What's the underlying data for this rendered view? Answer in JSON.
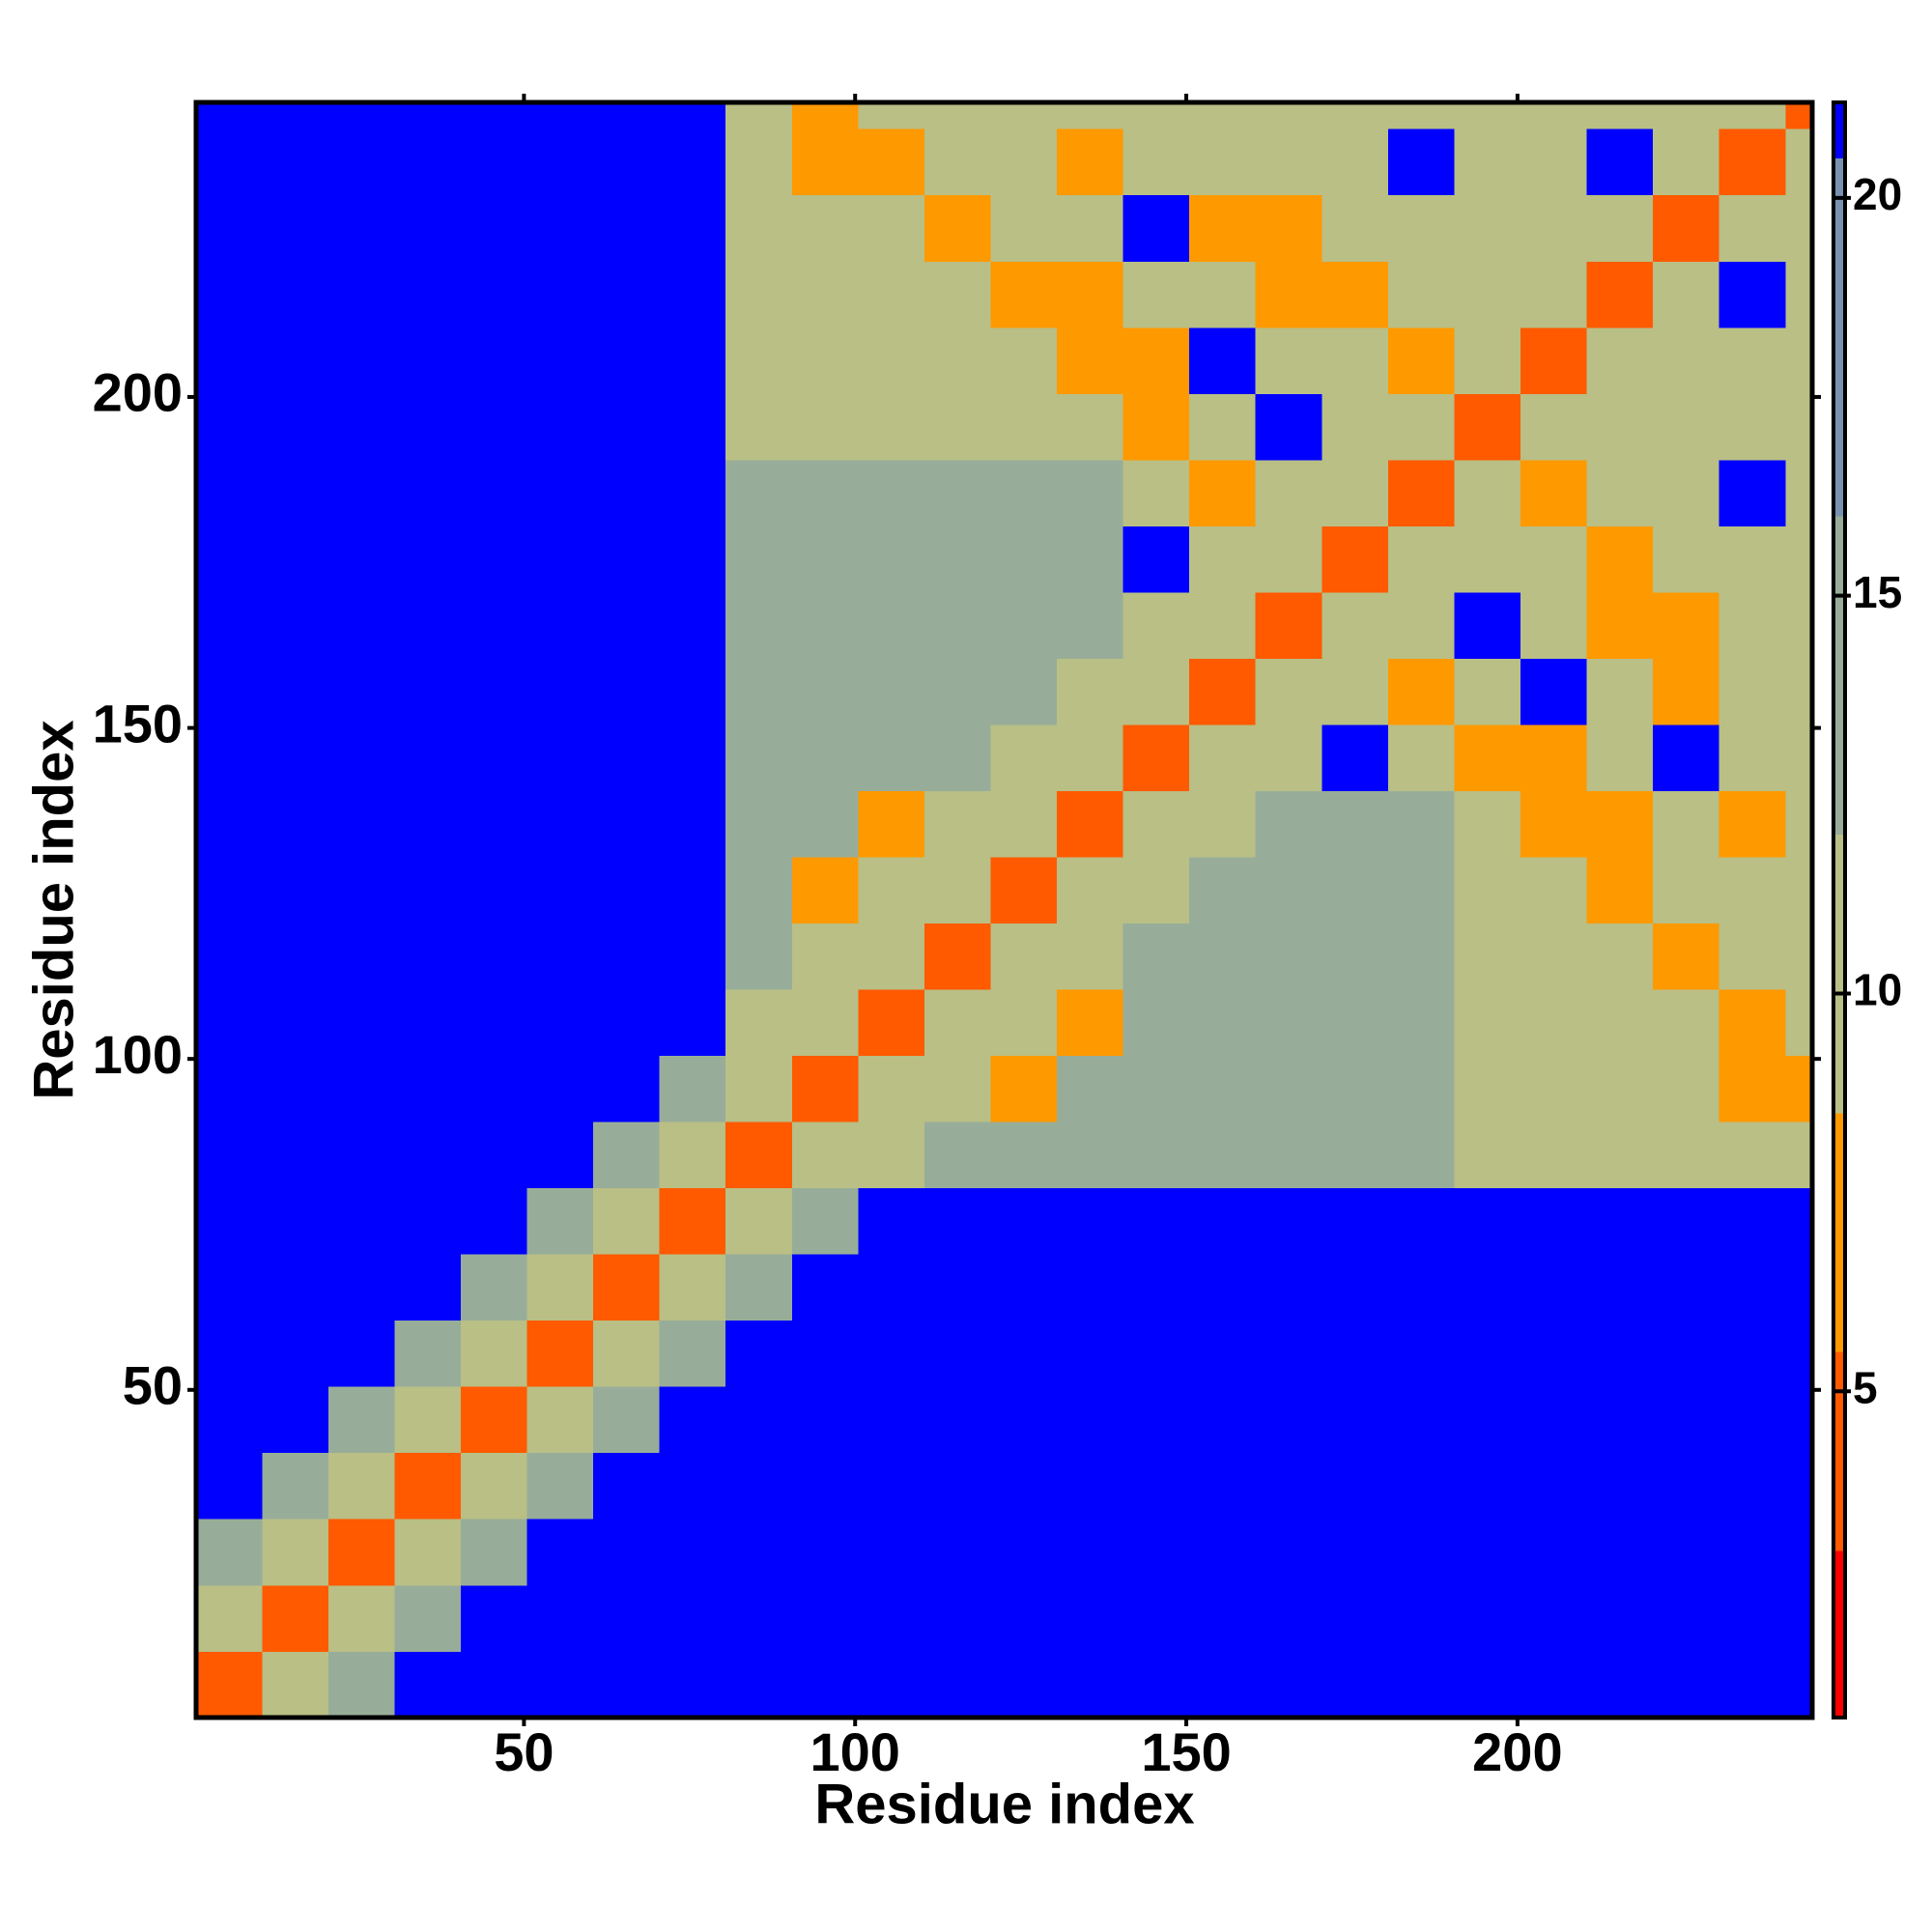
{
  "chart_data": {
    "type": "heatmap",
    "xlabel": "Residue index",
    "ylabel": "Residue index",
    "x_edges": [
      0.5,
      10.5,
      20.5,
      30.5,
      40.5,
      50.5,
      60.5,
      70.5,
      80.5,
      90.5,
      100.5,
      110.5,
      120.5,
      130.5,
      140.5,
      150.5,
      160.5,
      170.5,
      180.5,
      190.5,
      200.5,
      210.5,
      220.5,
      230.5,
      240.5,
      244.5
    ],
    "y_edges": [
      0.5,
      10.5,
      20.5,
      30.5,
      40.5,
      50.5,
      60.5,
      70.5,
      80.5,
      90.5,
      100.5,
      110.5,
      120.5,
      130.5,
      140.5,
      150.5,
      160.5,
      170.5,
      180.5,
      190.5,
      200.5,
      210.5,
      220.5,
      230.5,
      240.5,
      244.5
    ],
    "xlim": [
      0.5,
      244.5
    ],
    "ylim": [
      0.5,
      244.5
    ],
    "xticks": [
      50,
      100,
      150,
      200
    ],
    "yticks": [
      50,
      100,
      150,
      200
    ],
    "z": [
      [
        3,
        9,
        14,
        21,
        21,
        21,
        21,
        21,
        21,
        21,
        21,
        21,
        21,
        21,
        21,
        21,
        21,
        21,
        21,
        21,
        21,
        21,
        21,
        21,
        21
      ],
      [
        9,
        3,
        9,
        14,
        21,
        21,
        21,
        21,
        21,
        21,
        21,
        21,
        21,
        21,
        21,
        21,
        21,
        21,
        21,
        21,
        21,
        21,
        21,
        21,
        21
      ],
      [
        14,
        9,
        3,
        9,
        14,
        21,
        21,
        21,
        21,
        21,
        21,
        21,
        21,
        21,
        21,
        21,
        21,
        21,
        21,
        21,
        21,
        21,
        21,
        21,
        21
      ],
      [
        21,
        14,
        9,
        3,
        9,
        14,
        21,
        21,
        21,
        21,
        21,
        21,
        21,
        21,
        21,
        21,
        21,
        21,
        21,
        21,
        21,
        21,
        21,
        21,
        21
      ],
      [
        21,
        21,
        14,
        9,
        3,
        9,
        14,
        21,
        21,
        21,
        21,
        21,
        21,
        21,
        21,
        21,
        21,
        21,
        21,
        21,
        21,
        21,
        21,
        21,
        21
      ],
      [
        21,
        21,
        21,
        14,
        9,
        3,
        9,
        14,
        21,
        21,
        21,
        21,
        21,
        21,
        21,
        21,
        21,
        21,
        21,
        21,
        21,
        21,
        21,
        21,
        21
      ],
      [
        21,
        21,
        21,
        21,
        14,
        9,
        3,
        9,
        14,
        21,
        21,
        21,
        21,
        21,
        21,
        21,
        21,
        21,
        21,
        21,
        21,
        21,
        21,
        21,
        21
      ],
      [
        21,
        21,
        21,
        21,
        21,
        14,
        9,
        3,
        9,
        14,
        21,
        21,
        21,
        21,
        21,
        21,
        21,
        21,
        21,
        21,
        21,
        21,
        21,
        21,
        21
      ],
      [
        21,
        21,
        21,
        21,
        21,
        21,
        14,
        9,
        3,
        9,
        11,
        12,
        12,
        12,
        12,
        15,
        15,
        15,
        15,
        11,
        11,
        11,
        11,
        11,
        11
      ],
      [
        21,
        21,
        21,
        21,
        21,
        21,
        21,
        14,
        9,
        3,
        9,
        11,
        7,
        12,
        12,
        15,
        15,
        15,
        15,
        11,
        11,
        11,
        11,
        6,
        6
      ],
      [
        21,
        21,
        21,
        21,
        21,
        21,
        21,
        21,
        11,
        9,
        3,
        9,
        11,
        7,
        12,
        15,
        15,
        15,
        15,
        11,
        11,
        11,
        11,
        6,
        11
      ],
      [
        21,
        21,
        21,
        21,
        21,
        21,
        21,
        21,
        12,
        11,
        9,
        3,
        9,
        11,
        12,
        15,
        15,
        15,
        15,
        11,
        11,
        11,
        6,
        11,
        11
      ],
      [
        21,
        21,
        21,
        21,
        21,
        21,
        21,
        21,
        12,
        7,
        11,
        9,
        3,
        9,
        11,
        15,
        15,
        15,
        15,
        11,
        11,
        6,
        11,
        11,
        11
      ],
      [
        21,
        21,
        21,
        21,
        21,
        21,
        21,
        21,
        12,
        12,
        7,
        11,
        9,
        3,
        9,
        11,
        15,
        15,
        15,
        11,
        6,
        6,
        11,
        6,
        11
      ],
      [
        21,
        21,
        21,
        21,
        21,
        21,
        21,
        21,
        12,
        12,
        12,
        12,
        11,
        9,
        3,
        9,
        11,
        21,
        11,
        6,
        6,
        11,
        21,
        11,
        11
      ],
      [
        21,
        21,
        21,
        21,
        21,
        21,
        21,
        21,
        15,
        15,
        15,
        15,
        15,
        11,
        9,
        3,
        9,
        11,
        6,
        11,
        21,
        11,
        6,
        11,
        11
      ],
      [
        21,
        21,
        21,
        21,
        21,
        21,
        21,
        21,
        15,
        15,
        15,
        15,
        15,
        15,
        11,
        9,
        3,
        9,
        11,
        21,
        11,
        6,
        6,
        11,
        11
      ],
      [
        21,
        21,
        21,
        21,
        21,
        21,
        21,
        21,
        15,
        15,
        15,
        15,
        15,
        15,
        21,
        11,
        9,
        3,
        9,
        11,
        11,
        6,
        11,
        11,
        11
      ],
      [
        21,
        21,
        21,
        21,
        21,
        21,
        21,
        21,
        15,
        15,
        15,
        15,
        15,
        15,
        11,
        6,
        11,
        9,
        3,
        9,
        6,
        11,
        11,
        21,
        11
      ],
      [
        21,
        21,
        21,
        21,
        21,
        21,
        21,
        21,
        11,
        11,
        11,
        11,
        11,
        11,
        6,
        11,
        21,
        11,
        9,
        3,
        9,
        11,
        11,
        11,
        11
      ],
      [
        21,
        21,
        21,
        21,
        21,
        21,
        21,
        21,
        11,
        11,
        11,
        11,
        11,
        6,
        6,
        21,
        11,
        11,
        6,
        9,
        3,
        9,
        11,
        11,
        11
      ],
      [
        21,
        21,
        21,
        21,
        21,
        21,
        21,
        21,
        11,
        11,
        11,
        11,
        6,
        6,
        11,
        11,
        6,
        6,
        11,
        11,
        9,
        3,
        9,
        21,
        11
      ],
      [
        21,
        21,
        21,
        21,
        21,
        21,
        21,
        21,
        11,
        11,
        11,
        6,
        11,
        11,
        21,
        6,
        6,
        11,
        11,
        11,
        11,
        9,
        3,
        9,
        11
      ],
      [
        21,
        21,
        21,
        21,
        21,
        21,
        21,
        21,
        11,
        6,
        6,
        11,
        11,
        6,
        11,
        11,
        11,
        11,
        21,
        11,
        11,
        21,
        9,
        3,
        9
      ],
      [
        21,
        21,
        21,
        21,
        21,
        21,
        21,
        21,
        11,
        6,
        11,
        11,
        11,
        11,
        11,
        11,
        11,
        11,
        11,
        11,
        11,
        11,
        11,
        9,
        3
      ]
    ],
    "colorbar": {
      "lim": [
        0.9,
        21.2
      ],
      "ticks": [
        5,
        10,
        15,
        20
      ],
      "levels": [
        0.9,
        3,
        5.5,
        8.5,
        12,
        16,
        20.5,
        21.2
      ],
      "colors": [
        "#ff0000",
        "#ff5a00",
        "#ff9900",
        "#b9bf85",
        "#98ad99",
        "#7891b0",
        "#0000ff"
      ]
    }
  }
}
